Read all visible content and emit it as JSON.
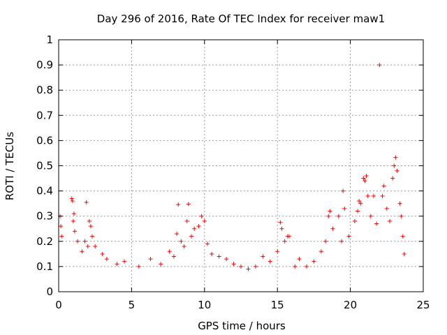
{
  "chart_data": {
    "type": "scatter",
    "title": "Day 296 of 2016, Rate Of TEC Index for receiver maw1",
    "xlabel": "GPS time / hours",
    "ylabel": "ROTI / TECUs",
    "xlim": [
      0,
      25
    ],
    "ylim": [
      0,
      1
    ],
    "x_ticks": [
      0,
      5,
      10,
      15,
      20,
      25
    ],
    "y_ticks": [
      0,
      0.1,
      0.2,
      0.3,
      0.4,
      0.5,
      0.6,
      0.7,
      0.8,
      0.9,
      1
    ],
    "x_tick_labels": [
      "0",
      "5",
      "10",
      "15",
      "20",
      "25"
    ],
    "y_tick_labels": [
      "0",
      "0.1",
      "0.2",
      "0.3",
      "0.4",
      "0.5",
      "0.6",
      "0.7",
      "0.8",
      "0.9",
      "1"
    ],
    "grid": true,
    "marker": "+",
    "color": "#ff0000",
    "series": [
      {
        "name": "ROTI",
        "points": [
          [
            0.1,
            0.3
          ],
          [
            0.15,
            0.26
          ],
          [
            0.2,
            0.22
          ],
          [
            0.9,
            0.37
          ],
          [
            0.95,
            0.36
          ],
          [
            1.0,
            0.28
          ],
          [
            1.05,
            0.31
          ],
          [
            1.1,
            0.24
          ],
          [
            1.3,
            0.2
          ],
          [
            1.6,
            0.16
          ],
          [
            1.8,
            0.2
          ],
          [
            1.9,
            0.355
          ],
          [
            2.0,
            0.18
          ],
          [
            2.1,
            0.28
          ],
          [
            2.2,
            0.26
          ],
          [
            2.3,
            0.22
          ],
          [
            2.5,
            0.18
          ],
          [
            3.0,
            0.15
          ],
          [
            3.3,
            0.13
          ],
          [
            4.0,
            0.11
          ],
          [
            4.5,
            0.12
          ],
          [
            5.5,
            0.1
          ],
          [
            6.3,
            0.13
          ],
          [
            7.0,
            0.11
          ],
          [
            7.6,
            0.16
          ],
          [
            7.9,
            0.14
          ],
          [
            8.1,
            0.23
          ],
          [
            8.2,
            0.346
          ],
          [
            8.4,
            0.2
          ],
          [
            8.6,
            0.18
          ],
          [
            8.8,
            0.28
          ],
          [
            8.9,
            0.348
          ],
          [
            9.1,
            0.22
          ],
          [
            9.3,
            0.25
          ],
          [
            9.6,
            0.26
          ],
          [
            9.8,
            0.3
          ],
          [
            10.0,
            0.28
          ],
          [
            10.2,
            0.19
          ],
          [
            10.5,
            0.15
          ],
          [
            11.0,
            0.14
          ],
          [
            11.5,
            0.13
          ],
          [
            12.0,
            0.11
          ],
          [
            12.5,
            0.1
          ],
          [
            13.0,
            0.09
          ],
          [
            13.5,
            0.1
          ],
          [
            14.0,
            0.14
          ],
          [
            14.5,
            0.12
          ],
          [
            15.0,
            0.16
          ],
          [
            15.2,
            0.275
          ],
          [
            15.3,
            0.25
          ],
          [
            15.5,
            0.2
          ],
          [
            15.7,
            0.22
          ],
          [
            15.8,
            0.22
          ],
          [
            16.2,
            0.1
          ],
          [
            16.5,
            0.13
          ],
          [
            17.0,
            0.1
          ],
          [
            17.5,
            0.12
          ],
          [
            18.0,
            0.16
          ],
          [
            18.3,
            0.2
          ],
          [
            18.5,
            0.3
          ],
          [
            18.6,
            0.32
          ],
          [
            18.8,
            0.25
          ],
          [
            19.2,
            0.3
          ],
          [
            19.4,
            0.2
          ],
          [
            19.5,
            0.4
          ],
          [
            19.6,
            0.33
          ],
          [
            19.9,
            0.22
          ],
          [
            20.3,
            0.28
          ],
          [
            20.5,
            0.32
          ],
          [
            20.6,
            0.36
          ],
          [
            20.7,
            0.35
          ],
          [
            20.9,
            0.45
          ],
          [
            21.0,
            0.44
          ],
          [
            21.1,
            0.46
          ],
          [
            21.2,
            0.38
          ],
          [
            21.4,
            0.3
          ],
          [
            21.6,
            0.38
          ],
          [
            21.8,
            0.27
          ],
          [
            22.0,
            0.9
          ],
          [
            22.2,
            0.38
          ],
          [
            22.3,
            0.42
          ],
          [
            22.5,
            0.33
          ],
          [
            22.7,
            0.28
          ],
          [
            22.9,
            0.45
          ],
          [
            23.0,
            0.5
          ],
          [
            23.1,
            0.533
          ],
          [
            23.2,
            0.48
          ],
          [
            23.4,
            0.35
          ],
          [
            23.5,
            0.3
          ],
          [
            23.6,
            0.22
          ],
          [
            23.7,
            0.15
          ]
        ]
      }
    ]
  }
}
